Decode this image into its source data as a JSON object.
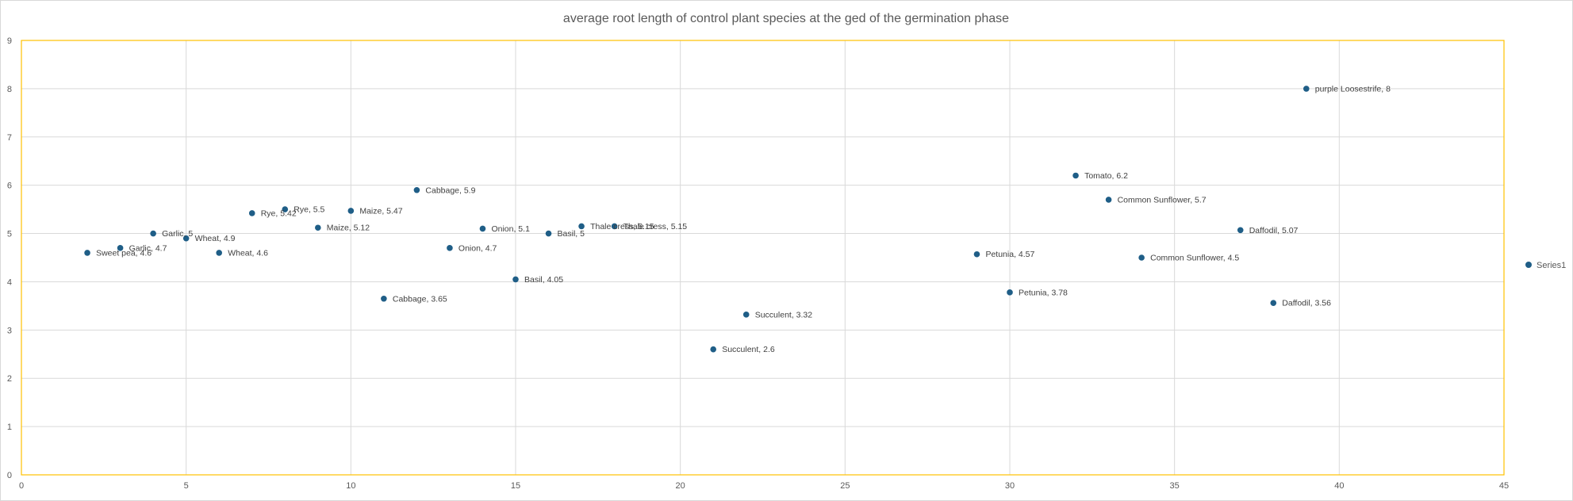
{
  "chart_data": {
    "type": "scatter",
    "title": "average root length of control plant species at the ged of the germination phase",
    "xlabel": "",
    "ylabel": "",
    "xlim": [
      0,
      45
    ],
    "ylim": [
      0,
      9
    ],
    "x_ticks": [
      0,
      5,
      10,
      15,
      20,
      25,
      30,
      35,
      40,
      45
    ],
    "y_ticks": [
      0,
      1,
      2,
      3,
      4,
      5,
      6,
      7,
      8,
      9
    ],
    "grid": true,
    "legend": "right",
    "series": [
      {
        "name": "Series1",
        "color": "#1f5e87",
        "points": [
          {
            "x": 2,
            "y": 4.6,
            "label": "Sweet pea, 4.6"
          },
          {
            "x": 3,
            "y": 4.7,
            "label": "Garlic, 4.7"
          },
          {
            "x": 4,
            "y": 5,
            "label": "Garlic, 5"
          },
          {
            "x": 5,
            "y": 4.9,
            "label": "Wheat, 4.9"
          },
          {
            "x": 6,
            "y": 4.6,
            "label": "Wheat, 4.6"
          },
          {
            "x": 7,
            "y": 5.42,
            "label": "Rye, 5.42"
          },
          {
            "x": 8,
            "y": 5.5,
            "label": "Rye, 5.5"
          },
          {
            "x": 9,
            "y": 5.12,
            "label": "Maize, 5.12"
          },
          {
            "x": 10,
            "y": 5.47,
            "label": "Maize, 5.47"
          },
          {
            "x": 11,
            "y": 3.65,
            "label": "Cabbage, 3.65"
          },
          {
            "x": 12,
            "y": 5.9,
            "label": "Cabbage, 5.9"
          },
          {
            "x": 13,
            "y": 4.7,
            "label": "Onion, 4.7"
          },
          {
            "x": 14,
            "y": 5.1,
            "label": "Onion, 5.1"
          },
          {
            "x": 15,
            "y": 4.05,
            "label": "Basil, 4.05"
          },
          {
            "x": 16,
            "y": 5,
            "label": "Basil, 5"
          },
          {
            "x": 17,
            "y": 5.15,
            "label": "Thale cress, 5.15"
          },
          {
            "x": 18,
            "y": 5.15,
            "label": "Thale cress, 5.15"
          },
          {
            "x": 21,
            "y": 2.6,
            "label": "Succulent, 2.6"
          },
          {
            "x": 22,
            "y": 3.32,
            "label": "Succulent, 3.32"
          },
          {
            "x": 29,
            "y": 4.57,
            "label": "Petunia, 4.57"
          },
          {
            "x": 30,
            "y": 3.78,
            "label": "Petunia, 3.78"
          },
          {
            "x": 32,
            "y": 6.2,
            "label": "Tomato, 6.2"
          },
          {
            "x": 33,
            "y": 5.7,
            "label": "Common Sunflower, 5.7"
          },
          {
            "x": 34,
            "y": 4.5,
            "label": "Common Sunflower, 4.5"
          },
          {
            "x": 37,
            "y": 5.07,
            "label": "Daffodil, 5.07"
          },
          {
            "x": 38,
            "y": 3.56,
            "label": "Daffodil, 3.56"
          },
          {
            "x": 39,
            "y": 8,
            "label": "purple Loosestrife, 8"
          }
        ]
      }
    ],
    "colors": {
      "gridline": "#d9d9d9",
      "plot_border": "#ffc000",
      "axis_text": "#595959",
      "marker": "#1f5e87"
    }
  }
}
